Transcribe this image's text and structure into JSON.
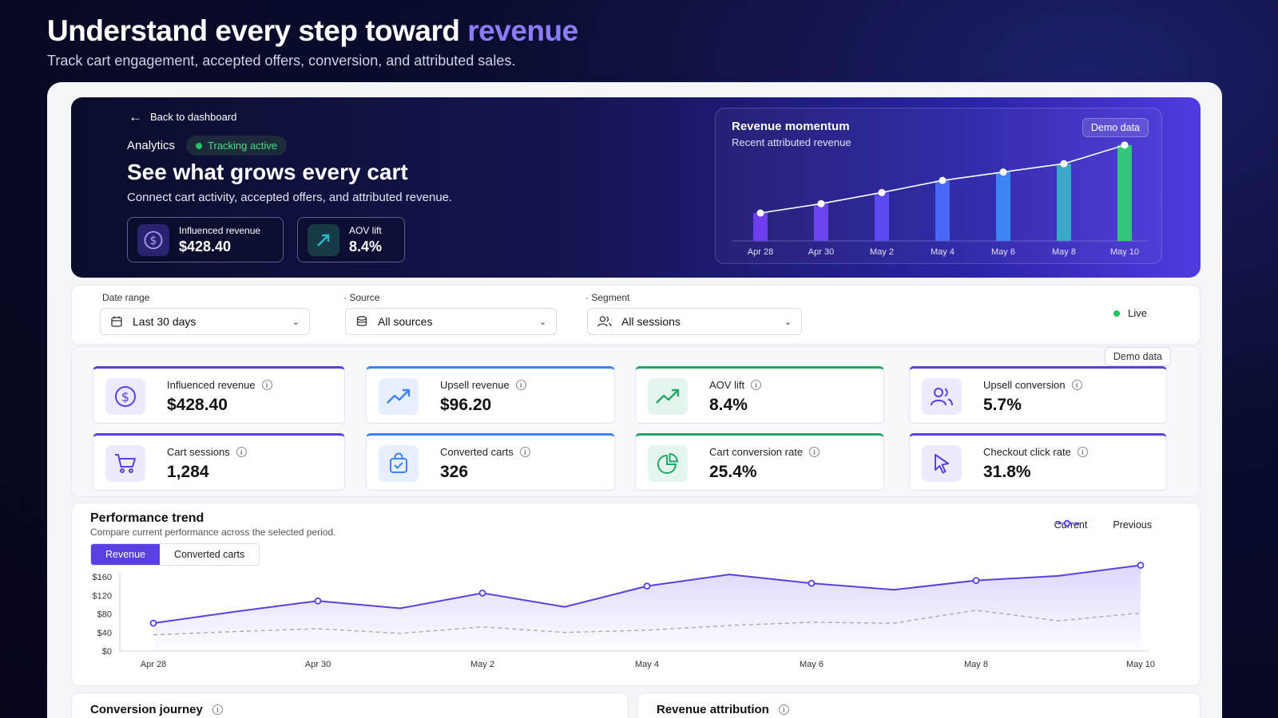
{
  "header": {
    "headline_main": "Understand every step toward",
    "headline_accent": "revenue",
    "subtitle": "Track cart engagement, accepted offers, conversion, and attributed sales."
  },
  "hero": {
    "back_label": "Back to dashboard",
    "section_label": "Analytics",
    "status": "Tracking active",
    "title": "See what grows every cart",
    "subtitle": "Connect cart activity, accepted offers, and attributed revenue.",
    "stats": [
      {
        "label": "Influenced revenue",
        "value": "$428.40",
        "icon": "dollar-icon"
      },
      {
        "label": "AOV lift",
        "value": "8.4%",
        "icon": "trend-up-icon"
      }
    ],
    "momentum": {
      "title": "Revenue momentum",
      "subtitle": "Recent attributed revenue",
      "badge": "Demo data"
    }
  },
  "filters": {
    "date_range": {
      "label": "Date range",
      "value": "Last 30 days",
      "icon": "calendar-icon"
    },
    "source": {
      "label": "Source",
      "value": "All sources",
      "icon": "database-icon"
    },
    "segment": {
      "label": "Segment",
      "value": "All sessions",
      "icon": "users-icon"
    },
    "live_label": "Live"
  },
  "kpis": {
    "badge": "Demo data",
    "items": [
      {
        "label": "Influenced revenue",
        "value": "$428.40",
        "icon": "dollar-icon",
        "accent": "#5b3fe0"
      },
      {
        "label": "Upsell revenue",
        "value": "$96.20",
        "icon": "trend-up-icon",
        "accent": "#3b82f6"
      },
      {
        "label": "AOV lift",
        "value": "8.4%",
        "icon": "trend-up-icon",
        "accent": "#22a565"
      },
      {
        "label": "Upsell conversion",
        "value": "5.7%",
        "icon": "users-icon",
        "accent": "#5b3fe0"
      },
      {
        "label": "Cart sessions",
        "value": "1,284",
        "icon": "cart-icon",
        "accent": "#5b3fe0"
      },
      {
        "label": "Converted carts",
        "value": "326",
        "icon": "bag-check-icon",
        "accent": "#3b82f6"
      },
      {
        "label": "Cart conversion rate",
        "value": "25.4%",
        "icon": "pie-icon",
        "accent": "#22a565"
      },
      {
        "label": "Checkout click rate",
        "value": "31.8%",
        "icon": "cursor-icon",
        "accent": "#5b3fe0"
      }
    ]
  },
  "performance": {
    "title": "Performance trend",
    "subtitle": "Compare current performance across the selected period.",
    "tabs": [
      "Revenue",
      "Converted carts"
    ],
    "legend": [
      "Current",
      "Previous"
    ]
  },
  "bottom": {
    "left_title": "Conversion journey",
    "right_title": "Revenue attribution"
  },
  "chart_data": [
    {
      "type": "bar",
      "categories": [
        "Apr 28",
        "Apr 30",
        "May 2",
        "May 4",
        "May 6",
        "May 8",
        "May 10"
      ],
      "values": [
        30,
        40,
        52,
        65,
        74,
        83,
        103
      ],
      "ylim": [
        0,
        120
      ],
      "grid": false,
      "colors": [
        "#6d3df0",
        "#6a45f0",
        "#5b4cf2",
        "#4868f5",
        "#3d84f4",
        "#38a9c8",
        "#34c77a"
      ]
    },
    {
      "type": "line",
      "x": [
        "Apr 28",
        "Apr 29",
        "Apr 30",
        "May 1",
        "May 2",
        "May 3",
        "May 4",
        "May 5",
        "May 6",
        "May 7",
        "May 8",
        "May 9",
        "May 10"
      ],
      "xticks": [
        "Apr 28",
        "Apr 30",
        "May 2",
        "May 4",
        "May 6",
        "May 8",
        "May 10"
      ],
      "yticks": [
        "$0",
        "$40",
        "$80",
        "$120",
        "$160"
      ],
      "ylim": [
        0,
        160
      ],
      "legend": "top-right",
      "series": [
        {
          "name": "Current",
          "values": [
            60,
            85,
            108,
            92,
            125,
            95,
            140,
            165,
            146,
            132,
            152,
            162,
            185
          ],
          "color": "#5b3fe0"
        },
        {
          "name": "Previous",
          "values": [
            35,
            42,
            48,
            38,
            52,
            40,
            45,
            55,
            62,
            60,
            88,
            65,
            82
          ],
          "color": "#aaaaaa"
        }
      ]
    }
  ]
}
